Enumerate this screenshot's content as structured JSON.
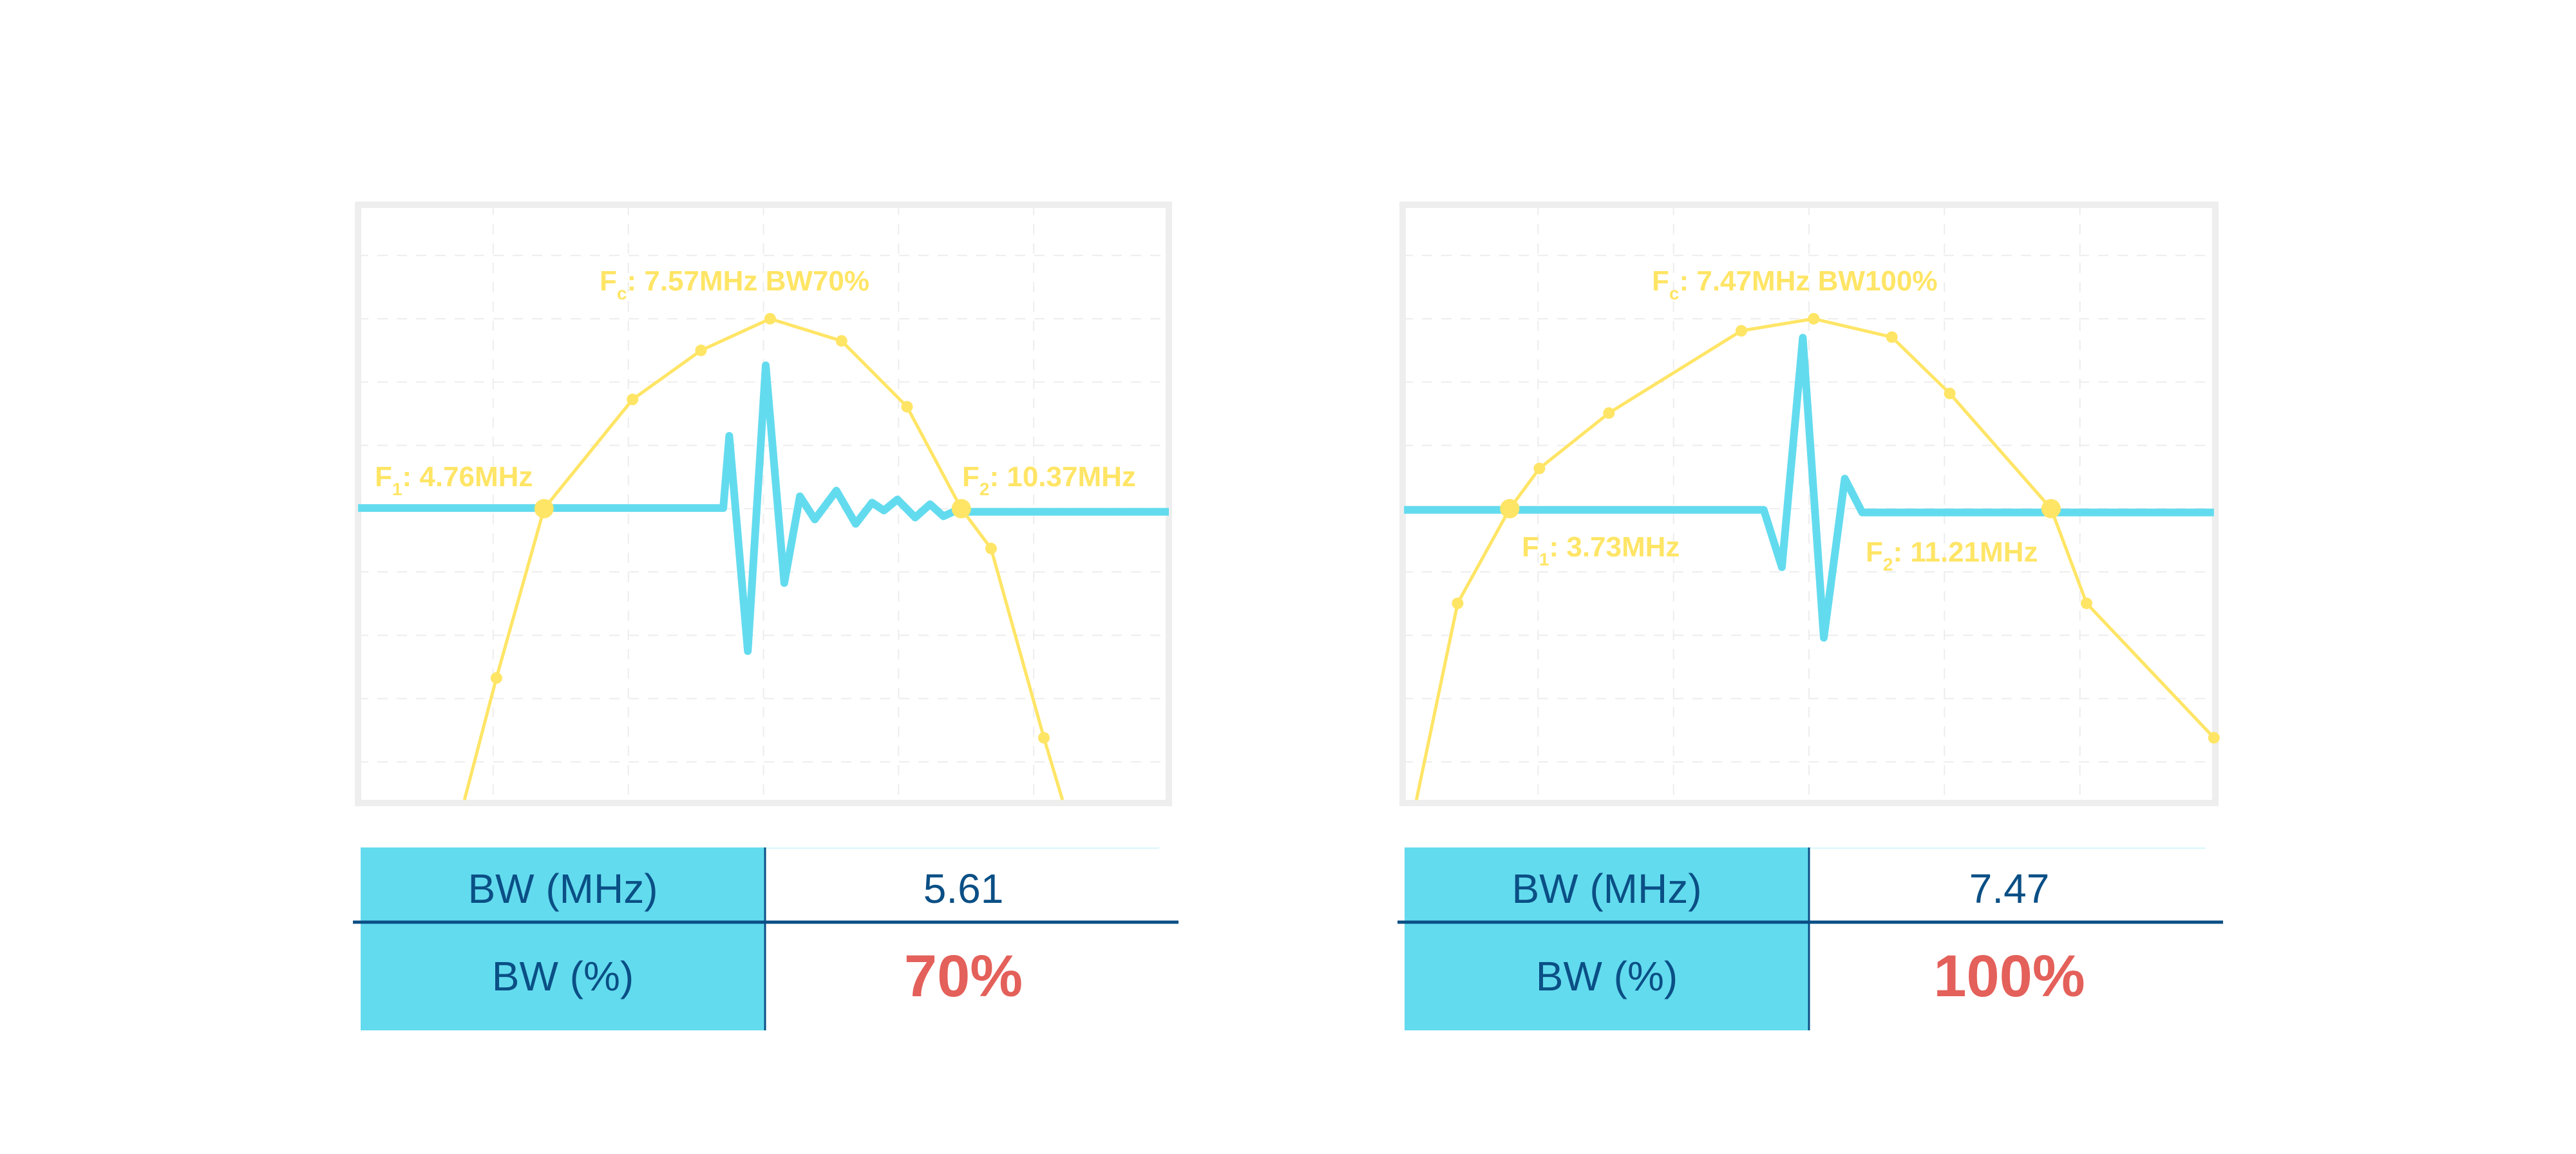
{
  "colors": {
    "spectrum": "#FFE566",
    "waveform": "#63DBEE",
    "header_fill": "#63DBEE",
    "text": "#0A4F85",
    "highlight": "#E4605A",
    "frame": "#EEEEEE"
  },
  "chart_data": [
    {
      "type": "line",
      "xlabel": "",
      "ylabel": "",
      "x_unit": "MHz",
      "y_unit": "dB",
      "xlim": [
        2.26,
        13.16
      ],
      "ylim": [
        -15.3,
        3.6
      ],
      "grid": true,
      "annotations": {
        "fc": {
          "main": "F",
          "sub": "c",
          "rest": ": 7.57MHz BW70%"
        },
        "f1": {
          "main": "F",
          "sub": "1",
          "rest": ": 4.76MHz"
        },
        "f2": {
          "main": "F",
          "sub": "2",
          "rest": ": 10.37MHz"
        }
      },
      "series": [
        {
          "role": "spectrum",
          "markers": true,
          "points": [
            [
              3.69,
              -15.2
            ],
            [
              4.12,
              -11.35
            ],
            [
              4.76,
              -6.0
            ],
            [
              5.95,
              -2.55
            ],
            [
              6.87,
              -1.0
            ],
            [
              7.8,
              0
            ],
            [
              8.76,
              -0.7
            ],
            [
              9.64,
              -2.78
            ],
            [
              10.37,
              -6.0
            ],
            [
              10.77,
              -7.26
            ],
            [
              11.48,
              -13.24
            ],
            [
              11.73,
              -15.2
            ]
          ],
          "highlight_points": [
            [
              4.76,
              -6.0
            ],
            [
              10.37,
              -6.0
            ]
          ],
          "end_marker": false
        },
        {
          "role": "waveform",
          "markers": false,
          "points": [
            [
              2.26,
              -5.98
            ],
            [
              7.17,
              -5.98
            ],
            [
              7.25,
              -3.7
            ],
            [
              7.5,
              -10.5
            ],
            [
              7.74,
              -1.47
            ],
            [
              7.99,
              -8.35
            ],
            [
              8.2,
              -5.61
            ],
            [
              8.4,
              -6.34
            ],
            [
              8.69,
              -5.43
            ],
            [
              8.95,
              -6.48
            ],
            [
              9.17,
              -5.81
            ],
            [
              9.33,
              -6.06
            ],
            [
              9.51,
              -5.71
            ],
            [
              9.75,
              -6.28
            ],
            [
              9.95,
              -5.86
            ],
            [
              10.13,
              -6.24
            ],
            [
              10.26,
              -6.1
            ],
            [
              13.16,
              -6.1
            ]
          ]
        }
      ],
      "table": {
        "rows": [
          {
            "label": "BW (MHz)",
            "value": "5.61"
          },
          {
            "label": "BW (%)",
            "value": "70%"
          }
        ]
      }
    },
    {
      "type": "line",
      "xlabel": "",
      "ylabel": "",
      "x_unit": "MHz",
      "y_unit": "dB",
      "xlim": [
        2.25,
        13.48
      ],
      "ylim": [
        -15.3,
        3.6
      ],
      "grid": true,
      "annotations": {
        "fc": {
          "main": "F",
          "sub": "c",
          "rest": ": 7.47MHz BW100%"
        },
        "f1": {
          "main": "F",
          "sub": "1",
          "rest": ": 3.73MHz"
        },
        "f2": {
          "main": "F",
          "sub": "2",
          "rest": ": 11.21MHz"
        }
      },
      "series": [
        {
          "role": "spectrum",
          "markers": true,
          "points": [
            [
              2.44,
              -15.2
            ],
            [
              3.01,
              -8.99
            ],
            [
              3.73,
              -6.0
            ],
            [
              4.14,
              -4.73
            ],
            [
              5.1,
              -2.98
            ],
            [
              6.93,
              -0.38
            ],
            [
              7.93,
              0
            ],
            [
              9.01,
              -0.58
            ],
            [
              9.81,
              -2.36
            ],
            [
              11.21,
              -6.0
            ],
            [
              11.7,
              -8.99
            ],
            [
              13.46,
              -13.24
            ]
          ],
          "highlight_points": [
            [
              3.73,
              -6.0
            ],
            [
              11.21,
              -6.0
            ]
          ],
          "end_marker": true
        },
        {
          "role": "waveform",
          "markers": false,
          "points": [
            [
              2.27,
              -6.04
            ],
            [
              7.24,
              -6.04
            ],
            [
              7.49,
              -7.85
            ],
            [
              7.78,
              -0.6
            ],
            [
              8.07,
              -10.08
            ],
            [
              8.36,
              -5.05
            ],
            [
              8.6,
              -6.12
            ],
            [
              13.46,
              -6.12
            ]
          ]
        }
      ],
      "table": {
        "rows": [
          {
            "label": "BW (MHz)",
            "value": "7.47"
          },
          {
            "label": "BW (%)",
            "value": "100%"
          }
        ]
      }
    }
  ]
}
